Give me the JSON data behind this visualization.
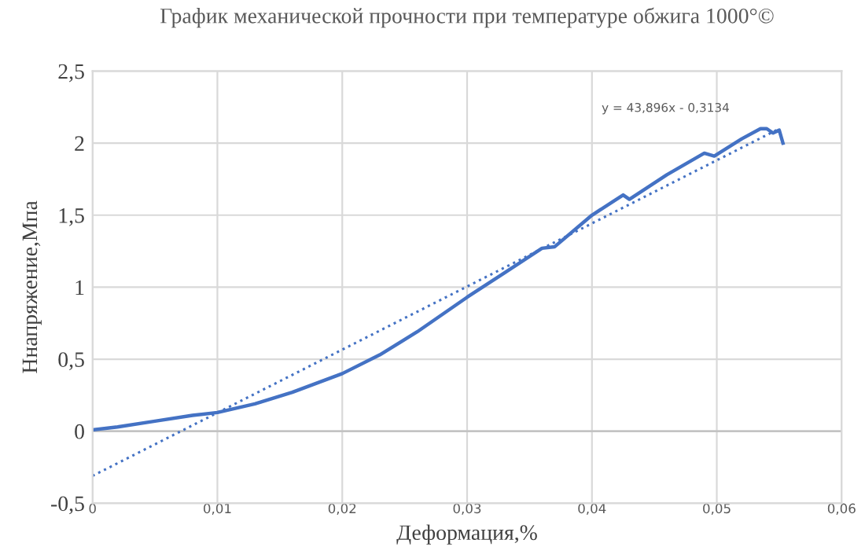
{
  "chart_data": {
    "type": "line",
    "title": "График механической прочности при температуре обжига 1000°©",
    "xlabel": "Деформация,%",
    "ylabel": "Ннапряжение,Мпа",
    "series": [
      {
        "color": "#4472c4",
        "line_style": "solid",
        "x": [
          0,
          0.002,
          0.005,
          0.008,
          0.01,
          0.013,
          0.016,
          0.02,
          0.023,
          0.026,
          0.03,
          0.033,
          0.036,
          0.037,
          0.04,
          0.0425,
          0.043,
          0.046,
          0.049,
          0.0498,
          0.052,
          0.0535,
          0.054,
          0.0545,
          0.055,
          0.0553
        ],
        "values": [
          0.01,
          0.03,
          0.07,
          0.11,
          0.13,
          0.19,
          0.27,
          0.4,
          0.53,
          0.69,
          0.93,
          1.1,
          1.27,
          1.28,
          1.5,
          1.64,
          1.61,
          1.78,
          1.93,
          1.91,
          2.03,
          2.1,
          2.1,
          2.07,
          2.09,
          2.0
        ]
      },
      {
        "color": "#4472c4",
        "line_style": "dotted",
        "x": [
          0,
          0.055
        ],
        "values": [
          -0.31,
          2.1
        ]
      }
    ],
    "annotations": [
      "y = 43,896x - 0,3134"
    ],
    "xlim": [
      0,
      0.06
    ],
    "ylim": [
      -0.5,
      2.5
    ],
    "xticks": [
      0,
      {
        "value": 0.01,
        "label": "0,01"
      },
      {
        "value": 0.02,
        "label": "0,02"
      },
      {
        "value": 0.03,
        "label": "0,03"
      },
      {
        "value": 0.04,
        "label": "0,04"
      },
      {
        "value": 0.05,
        "label": "0,05"
      },
      {
        "value": 0.06,
        "label": "0,06"
      }
    ],
    "yticks": [
      {
        "value": -0.5,
        "label": "-0,5"
      },
      0,
      {
        "value": 0.5,
        "label": "0,5"
      },
      1,
      {
        "value": 1.5,
        "label": "1,5"
      },
      2,
      {
        "value": 2.5,
        "label": "2,5"
      }
    ],
    "grid": true,
    "legend": false
  }
}
